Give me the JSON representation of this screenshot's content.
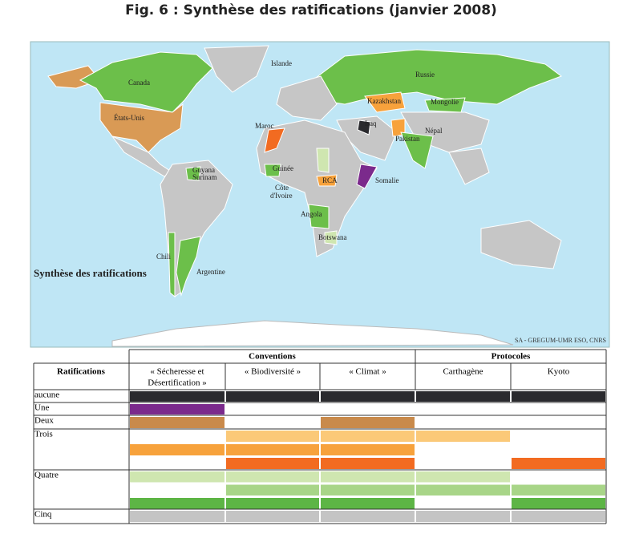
{
  "title": "Fig. 6 : Synthèse des ratifications (janvier 2008)",
  "map": {
    "caption": "Synthèse des ratifications",
    "credit": "SA - GREGUM-UMR ESO, CNRS",
    "labels": [
      "Islande",
      "Canada",
      "Russie",
      "Kazakhstan",
      "Mongolie",
      "États-Unis",
      "Iraq",
      "Maroc",
      "Népal",
      "Pakistan",
      "Guyana",
      "Surinam",
      "Guinée",
      "RCA",
      "Somalie",
      "Côte",
      "d'Ivoire",
      "Angola",
      "Botswana",
      "Chili",
      "Argentine"
    ]
  },
  "table": {
    "groups": [
      "Conventions",
      "Protocoles"
    ],
    "header": "Ratifications",
    "columns": [
      [
        "« Sécheresse et",
        "Désertification »"
      ],
      [
        "« Biodiversité »"
      ],
      [
        "« Climat »"
      ],
      [
        "Carthagène"
      ],
      [
        "Kyoto"
      ]
    ],
    "rows": [
      "aucune",
      "Une",
      "Deux",
      "Trois",
      "Quatre",
      "Cinq"
    ]
  }
}
